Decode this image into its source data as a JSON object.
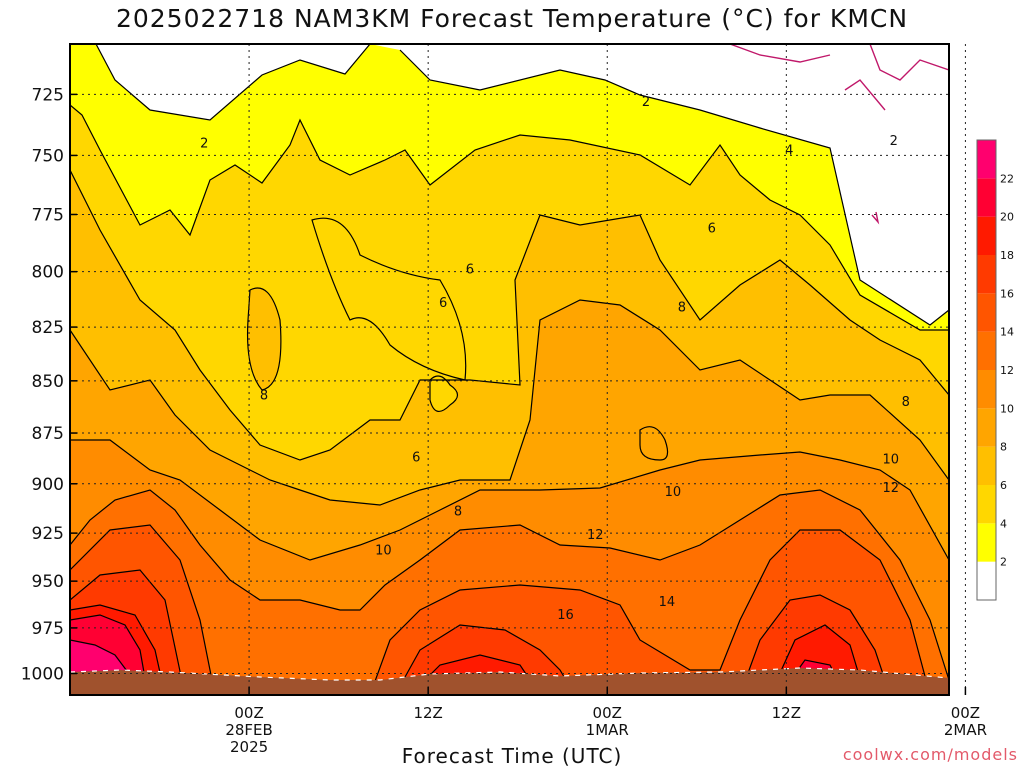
{
  "chart_data": {
    "type": "heatmap",
    "title": "2025022718 NAM3KM Forecast Temperature (°C) for KMCN",
    "xlabel": "Forecast Time (UTC)",
    "ylabel": "",
    "y_scale": "pressure (inverted)",
    "ylim": [
      1012,
      705
    ],
    "xlim": [
      -6,
      21
    ],
    "y_ticks": [
      725,
      750,
      775,
      800,
      825,
      850,
      875,
      900,
      925,
      950,
      975,
      1000
    ],
    "x_ticks": [
      {
        "value": 0,
        "lines": [
          "00Z",
          "28FEB",
          "2025"
        ]
      },
      {
        "value": 6,
        "lines": [
          "12Z"
        ]
      },
      {
        "value": 12,
        "lines": [
          "00Z",
          "1MAR"
        ]
      },
      {
        "value": 18,
        "lines": [
          "12Z"
        ]
      },
      {
        "value": 24,
        "lines": [
          "00Z",
          "2MAR"
        ]
      }
    ],
    "grid": true,
    "colorbar": {
      "levels": [
        0,
        2,
        4,
        6,
        8,
        10,
        12,
        14,
        16,
        18,
        20,
        22,
        24
      ],
      "labels": [
        "2",
        "4",
        "6",
        "8",
        "10",
        "12",
        "14",
        "16",
        "18",
        "20",
        "22"
      ],
      "colors": [
        "#ffffff",
        "#ffff00",
        "#ffd700",
        "#ffbf00",
        "#ffa500",
        "#ff8c00",
        "#ff7000",
        "#ff5500",
        "#ff3a00",
        "#ff1a00",
        "#ff0033",
        "#ff006e"
      ]
    },
    "contour_labels": [
      {
        "text": "2",
        "x": 13.3,
        "y": 728
      },
      {
        "text": "2",
        "x": -1.5,
        "y": 745
      },
      {
        "text": "2",
        "x": 21.6,
        "y": 744
      },
      {
        "text": "4",
        "x": 18.1,
        "y": 748
      },
      {
        "text": "6",
        "x": 7.4,
        "y": 799
      },
      {
        "text": "6",
        "x": 6.5,
        "y": 814
      },
      {
        "text": "6",
        "x": 15.5,
        "y": 781
      },
      {
        "text": "6",
        "x": 5.6,
        "y": 887
      },
      {
        "text": "8",
        "x": 0.5,
        "y": 857
      },
      {
        "text": "8",
        "x": 14.5,
        "y": 816
      },
      {
        "text": "8",
        "x": 22.0,
        "y": 860
      },
      {
        "text": "8",
        "x": 7.0,
        "y": 914
      },
      {
        "text": "10",
        "x": 4.5,
        "y": 934
      },
      {
        "text": "10",
        "x": 14.2,
        "y": 904
      },
      {
        "text": "10",
        "x": 21.5,
        "y": 888
      },
      {
        "text": "12",
        "x": 11.6,
        "y": 926
      },
      {
        "text": "12",
        "x": 21.5,
        "y": 902
      },
      {
        "text": "14",
        "x": 14.0,
        "y": 961
      },
      {
        "text": "16",
        "x": 10.6,
        "y": 968
      }
    ],
    "watermark": "coolwx.com/models"
  }
}
